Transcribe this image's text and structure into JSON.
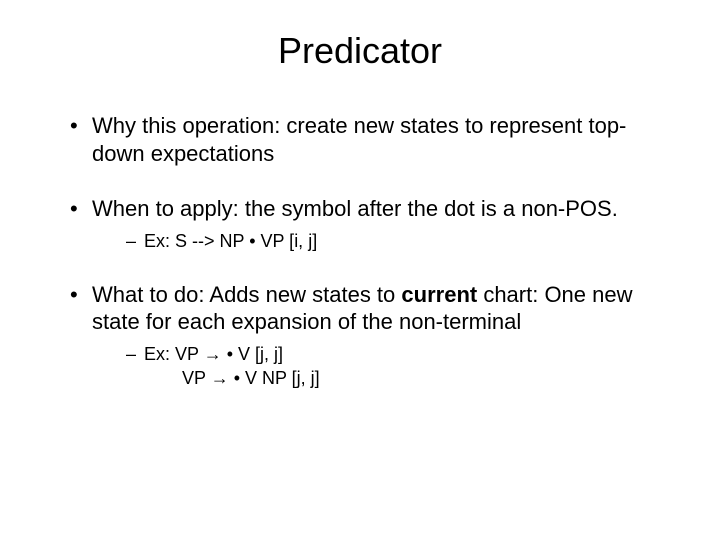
{
  "title": "Predicator",
  "bullets": [
    {
      "text": "Why this operation:  create new states to represent top-down expectations",
      "subs": []
    },
    {
      "text": "When to apply:  the symbol after the dot is a non-POS.",
      "subs": [
        {
          "line1": "Ex: S --> NP • VP  [i, j]"
        }
      ]
    },
    {
      "prefix": "What to do: Adds new states to ",
      "boldword": "current",
      "suffix": " chart: One new state for each expansion of the non-terminal",
      "subs": [
        {
          "line1": "Ex: VP → • V   [j, j]",
          "line2": "VP → • V  NP   [j, j]"
        }
      ]
    }
  ]
}
